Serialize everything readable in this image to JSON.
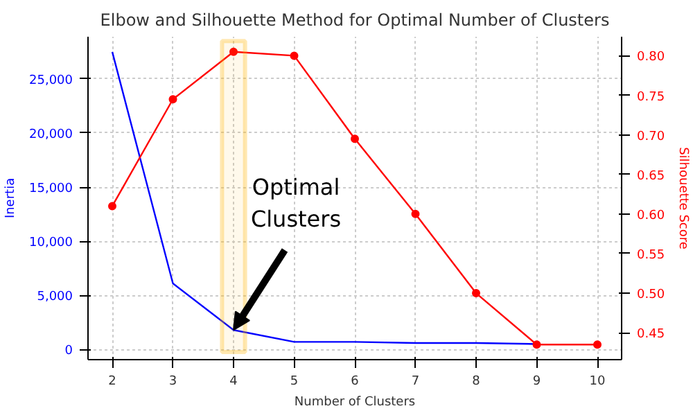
{
  "chart_data": {
    "type": "line",
    "title": "Elbow and Silhouette Method for Optimal Number of Clusters",
    "xlabel": "Number of Clusters",
    "ylabel": "Inertia",
    "y2label": "Silhouette Score",
    "x": [
      2,
      3,
      4,
      5,
      6,
      7,
      8,
      9,
      10
    ],
    "series": [
      {
        "name": null,
        "color": "#0000ff",
        "marker": "none",
        "values": [
          27500,
          6100,
          1800,
          700,
          700,
          600,
          600,
          500,
          null
        ]
      },
      {
        "name": null,
        "color": "#ff0000",
        "marker": "circle",
        "axis": "y2",
        "values": [
          0.61,
          0.745,
          0.805,
          0.8,
          0.695,
          0.6,
          0.5,
          0.435,
          0.435
        ]
      }
    ],
    "xlim": [
      1.6,
      10.4
    ],
    "xticks": [
      2,
      3,
      4,
      5,
      6,
      7,
      8,
      9,
      10
    ],
    "ylim": [
      -940,
      28900
    ],
    "yticks": [
      0,
      {
        "value": 5000,
        "label": "5,000"
      },
      {
        "value": 10000,
        "label": "10,000"
      },
      {
        "value": 15000,
        "label": "15,000"
      },
      {
        "value": 20000,
        "label": "20,000"
      },
      {
        "value": 25000,
        "label": "25,000"
      }
    ],
    "y2lim": [
      0.416,
      0.824
    ],
    "y2ticks": [
      {
        "value": 0.45,
        "label": "0.45"
      },
      {
        "value": 0.5,
        "label": "0.50"
      },
      {
        "value": 0.55,
        "label": "0.55"
      },
      {
        "value": 0.6,
        "label": "0.60"
      },
      {
        "value": 0.65,
        "label": "0.65"
      },
      {
        "value": 0.7,
        "label": "0.70"
      },
      {
        "value": 0.75,
        "label": "0.75"
      },
      {
        "value": 0.8,
        "label": "0.80"
      }
    ],
    "bands": [
      {
        "axis": "x",
        "from": 3.81,
        "to": 4.19,
        "color": "#ffb300"
      }
    ],
    "annotations": [
      {
        "text": "Optimal\nClusters",
        "x": 4,
        "y": 1800
      }
    ],
    "grid": true
  }
}
